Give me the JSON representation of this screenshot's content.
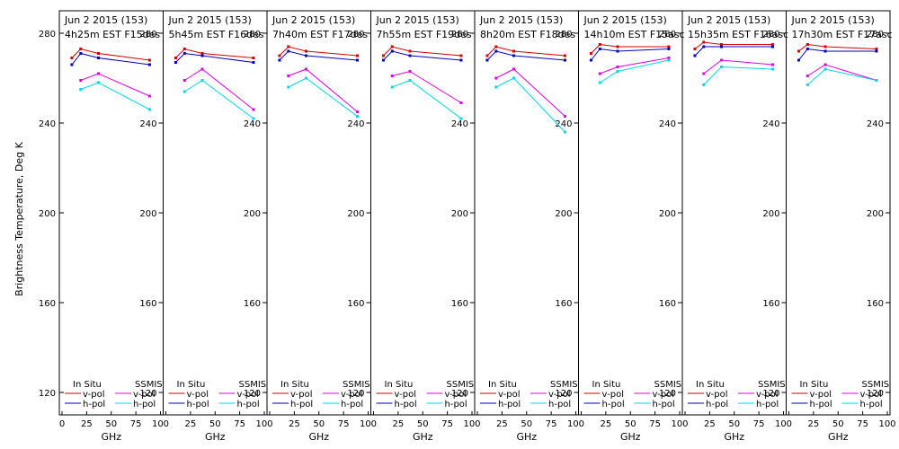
{
  "y_axis_label": "Brightness Temperature, Deg K",
  "chart_data": {
    "type": "line",
    "ylabel": "Brightness Temperature, Deg K",
    "xlabel": "GHz",
    "xlim": [
      0,
      100
    ],
    "ylim": [
      110,
      290
    ],
    "yticks": [
      120,
      160,
      200,
      240,
      280
    ],
    "xticks": [
      0,
      25,
      50,
      75,
      100
    ],
    "xtick_labels": [
      "0",
      "25",
      "50",
      "75",
      "100"
    ],
    "legend": {
      "group_in_situ": "In Situ",
      "group_ssmis": "SSMIS",
      "vpol": "v-pol",
      "hpol": "h-pol"
    },
    "colors": {
      "insitu_v": "#d40000",
      "insitu_h": "#0000c0",
      "ssmis_v": "#e000e0",
      "ssmis_h": "#00d8e8"
    },
    "panels": [
      {
        "title1": "Jun 2 2015 (153)",
        "title2": "4h25m EST F15des",
        "series": [
          {
            "key": "insitu_v",
            "x": [
              10,
              19,
              37,
              89
            ],
            "y": [
              269,
              273,
              271,
              268
            ]
          },
          {
            "key": "insitu_h",
            "x": [
              10,
              19,
              37,
              89
            ],
            "y": [
              266,
              271,
              269,
              266
            ]
          },
          {
            "key": "ssmis_v",
            "x": [
              19,
              37,
              89
            ],
            "y": [
              259,
              262,
              252
            ]
          },
          {
            "key": "ssmis_h",
            "x": [
              19,
              37,
              89
            ],
            "y": [
              255,
              258,
              246
            ]
          }
        ]
      },
      {
        "title1": "Jun 2 2015 (153)",
        "title2": "5h45m EST F16des",
        "series": [
          {
            "key": "insitu_v",
            "x": [
              10,
              19,
              37,
              89
            ],
            "y": [
              269,
              273,
              271,
              269
            ]
          },
          {
            "key": "insitu_h",
            "x": [
              10,
              19,
              37,
              89
            ],
            "y": [
              267,
              271,
              270,
              267
            ]
          },
          {
            "key": "ssmis_v",
            "x": [
              19,
              37,
              89
            ],
            "y": [
              259,
              264,
              246
            ]
          },
          {
            "key": "ssmis_h",
            "x": [
              19,
              37,
              89
            ],
            "y": [
              254,
              259,
              242
            ]
          }
        ]
      },
      {
        "title1": "Jun 2 2015 (153)",
        "title2": "7h40m EST F17des",
        "series": [
          {
            "key": "insitu_v",
            "x": [
              10,
              19,
              37,
              89
            ],
            "y": [
              270,
              274,
              272,
              270
            ]
          },
          {
            "key": "insitu_h",
            "x": [
              10,
              19,
              37,
              89
            ],
            "y": [
              268,
              272,
              270,
              268
            ]
          },
          {
            "key": "ssmis_v",
            "x": [
              19,
              37,
              89
            ],
            "y": [
              261,
              264,
              245
            ]
          },
          {
            "key": "ssmis_h",
            "x": [
              19,
              37,
              89
            ],
            "y": [
              256,
              260,
              243
            ]
          }
        ]
      },
      {
        "title1": "Jun 2 2015 (153)",
        "title2": "7h55m EST F19des",
        "series": [
          {
            "key": "insitu_v",
            "x": [
              10,
              19,
              37,
              89
            ],
            "y": [
              270,
              274,
              272,
              270
            ]
          },
          {
            "key": "insitu_h",
            "x": [
              10,
              19,
              37,
              89
            ],
            "y": [
              268,
              272,
              270,
              268
            ]
          },
          {
            "key": "ssmis_v",
            "x": [
              19,
              37,
              89
            ],
            "y": [
              261,
              263,
              249
            ]
          },
          {
            "key": "ssmis_h",
            "x": [
              19,
              37,
              89
            ],
            "y": [
              256,
              259,
              242
            ]
          }
        ]
      },
      {
        "title1": "Jun 2 2015 (153)",
        "title2": "8h20m EST F18des",
        "series": [
          {
            "key": "insitu_v",
            "x": [
              10,
              19,
              37,
              89
            ],
            "y": [
              270,
              274,
              272,
              270
            ]
          },
          {
            "key": "insitu_h",
            "x": [
              10,
              19,
              37,
              89
            ],
            "y": [
              268,
              272,
              270,
              268
            ]
          },
          {
            "key": "ssmis_v",
            "x": [
              19,
              37,
              89
            ],
            "y": [
              260,
              264,
              243
            ]
          },
          {
            "key": "ssmis_h",
            "x": [
              19,
              37,
              89
            ],
            "y": [
              256,
              260,
              236
            ]
          }
        ]
      },
      {
        "title1": "Jun 2 2015 (153)",
        "title2": "14h10m EST F15asc",
        "series": [
          {
            "key": "insitu_v",
            "x": [
              10,
              19,
              37,
              89
            ],
            "y": [
              271,
              275,
              274,
              274
            ]
          },
          {
            "key": "insitu_h",
            "x": [
              10,
              19,
              37,
              89
            ],
            "y": [
              268,
              273,
              272,
              273
            ]
          },
          {
            "key": "ssmis_v",
            "x": [
              19,
              37,
              89
            ],
            "y": [
              262,
              265,
              269
            ]
          },
          {
            "key": "ssmis_h",
            "x": [
              19,
              37,
              89
            ],
            "y": [
              258,
              263,
              268
            ]
          }
        ]
      },
      {
        "title1": "Jun 2 2015 (153)",
        "title2": "15h35m EST F16asc",
        "series": [
          {
            "key": "insitu_v",
            "x": [
              10,
              19,
              37,
              89
            ],
            "y": [
              273,
              276,
              275,
              275
            ]
          },
          {
            "key": "insitu_h",
            "x": [
              10,
              19,
              37,
              89
            ],
            "y": [
              270,
              274,
              274,
              274
            ]
          },
          {
            "key": "ssmis_v",
            "x": [
              19,
              37,
              89
            ],
            "y": [
              262,
              268,
              266
            ]
          },
          {
            "key": "ssmis_h",
            "x": [
              19,
              37,
              89
            ],
            "y": [
              257,
              265,
              264
            ]
          }
        ]
      },
      {
        "title1": "Jun 2 2015 (153)",
        "title2": "17h30m EST F17asc",
        "series": [
          {
            "key": "insitu_v",
            "x": [
              10,
              19,
              37,
              89
            ],
            "y": [
              272,
              275,
              274,
              273
            ]
          },
          {
            "key": "insitu_h",
            "x": [
              10,
              19,
              37,
              89
            ],
            "y": [
              268,
              273,
              272,
              272
            ]
          },
          {
            "key": "ssmis_v",
            "x": [
              19,
              37,
              89
            ],
            "y": [
              261,
              266,
              259
            ]
          },
          {
            "key": "ssmis_h",
            "x": [
              19,
              37,
              89
            ],
            "y": [
              257,
              264,
              259
            ]
          }
        ]
      }
    ]
  }
}
